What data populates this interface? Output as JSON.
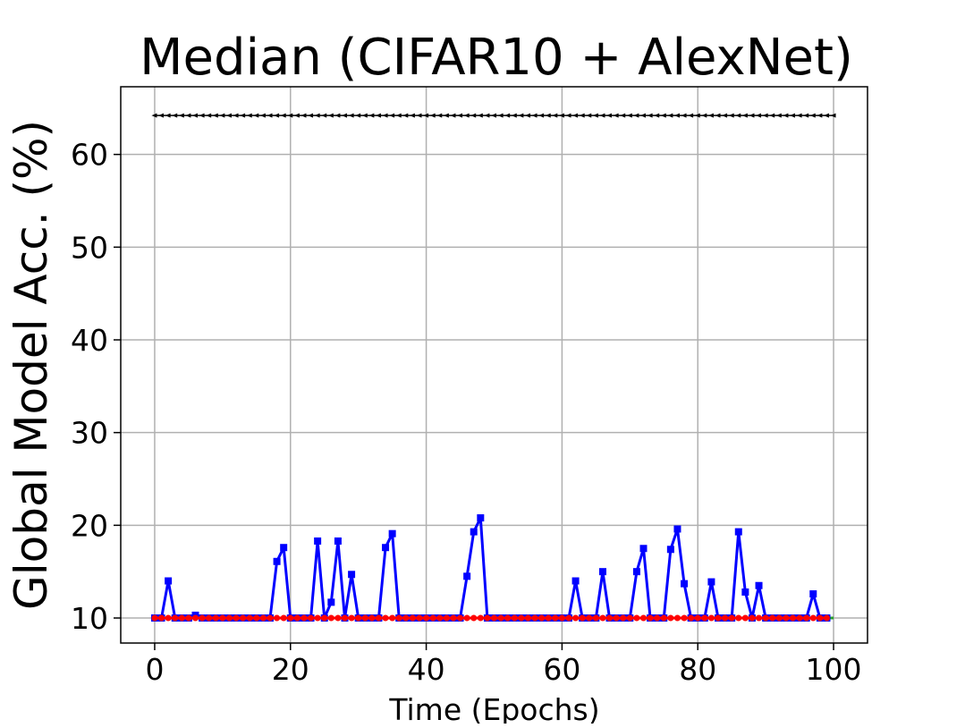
{
  "chart_data": {
    "type": "line",
    "title": "Median (CIFAR10 + AlexNet)",
    "xlabel": "Time (Epochs)",
    "ylabel": "Global Model Acc. (%)",
    "xlim": [
      -5,
      105
    ],
    "ylim": [
      7.3,
      67.3
    ],
    "xticks": [
      0,
      20,
      40,
      60,
      80,
      100
    ],
    "yticks": [
      10,
      20,
      30,
      40,
      50,
      60
    ],
    "grid": true,
    "series": [
      {
        "color": "#000000",
        "marker": "triangle-left",
        "x_start": 0,
        "x_end": 100,
        "values": [
          64.2
        ]
      },
      {
        "color": "#0000ff",
        "marker": "square",
        "x": [
          0,
          1,
          2,
          3,
          4,
          5,
          6,
          7,
          8,
          9,
          10,
          11,
          12,
          13,
          14,
          15,
          16,
          17,
          18,
          19,
          20,
          21,
          22,
          23,
          24,
          25,
          26,
          27,
          28,
          29,
          30,
          31,
          32,
          33,
          34,
          35,
          36,
          37,
          38,
          39,
          40,
          41,
          42,
          43,
          44,
          45,
          46,
          47,
          48,
          49,
          50,
          51,
          52,
          53,
          54,
          55,
          56,
          57,
          58,
          59,
          60,
          61,
          62,
          63,
          64,
          65,
          66,
          67,
          68,
          69,
          70,
          71,
          72,
          73,
          74,
          75,
          76,
          77,
          78,
          79,
          80,
          81,
          82,
          83,
          84,
          85,
          86,
          87,
          88,
          89,
          90,
          91,
          92,
          93,
          94,
          95,
          96,
          97,
          98,
          99
        ],
        "values": [
          10,
          10,
          14,
          10,
          10,
          10,
          10.3,
          10,
          10,
          10,
          10,
          10,
          10,
          10,
          10,
          10,
          10,
          10,
          16.1,
          17.6,
          10,
          10,
          10,
          10,
          18.3,
          10,
          11.7,
          18.3,
          10,
          14.7,
          10,
          10,
          10,
          10,
          17.6,
          19.1,
          10,
          10,
          10,
          10,
          10,
          10,
          10,
          10,
          10,
          10,
          14.5,
          19.3,
          20.8,
          10,
          10,
          10,
          10,
          10,
          10,
          10,
          10,
          10,
          10,
          10,
          10,
          10,
          14,
          10,
          10,
          10,
          15,
          10,
          10,
          10,
          10,
          15,
          17.5,
          10,
          10,
          10,
          17.4,
          19.6,
          13.7,
          10,
          10,
          10,
          13.9,
          10,
          10,
          10,
          19.3,
          12.8,
          10,
          13.5,
          10,
          10,
          10,
          10,
          10,
          10,
          10,
          12.6,
          10,
          10
        ]
      },
      {
        "color": "#ff0000",
        "marker": "circle",
        "x_start": 0,
        "x_end": 99,
        "values": [
          10
        ]
      },
      {
        "color": "#2ca02c",
        "marker": "none",
        "x_start": 0,
        "x_end": 100,
        "values": [
          10
        ]
      }
    ]
  }
}
